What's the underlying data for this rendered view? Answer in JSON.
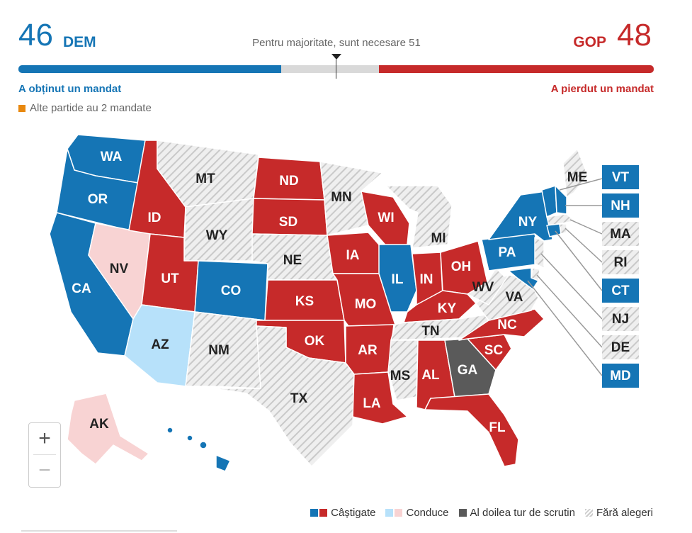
{
  "dem": {
    "seats": "46",
    "label": "DEM",
    "note": "A obținut un mandat"
  },
  "gop": {
    "seats": "48",
    "label": "GOP",
    "note": "A pierdut un mandat"
  },
  "majority_text": "Pentru majoritate, sunt necesare 51",
  "other_parties": "Alte partide au 2 mandate",
  "colors": {
    "dem": "#1575b5",
    "gop": "#c62a2a",
    "dem_lead": "#b7e1fa",
    "gop_lead": "#f8d3d3",
    "runoff": "#5a5a5a",
    "no_election": "#dedede",
    "other": "#e8880f"
  },
  "bar": {
    "total_seats": 100,
    "dem_seats": 46,
    "gop_seats": 48,
    "majority": 51
  },
  "states": {
    "WA": {
      "status": "dem"
    },
    "OR": {
      "status": "dem"
    },
    "CA": {
      "status": "dem"
    },
    "NV": {
      "status": "gop_lead"
    },
    "ID": {
      "status": "gop"
    },
    "MT": {
      "status": "none"
    },
    "WY": {
      "status": "none"
    },
    "UT": {
      "status": "gop"
    },
    "AZ": {
      "status": "dem_lead"
    },
    "CO": {
      "status": "dem"
    },
    "NM": {
      "status": "none"
    },
    "ND": {
      "status": "gop"
    },
    "SD": {
      "status": "gop"
    },
    "NE": {
      "status": "none"
    },
    "KS": {
      "status": "gop"
    },
    "OK": {
      "status": "gop"
    },
    "TX": {
      "status": "none"
    },
    "MN": {
      "status": "none"
    },
    "IA": {
      "status": "gop"
    },
    "MO": {
      "status": "gop"
    },
    "AR": {
      "status": "gop"
    },
    "LA": {
      "status": "gop"
    },
    "WI": {
      "status": "gop"
    },
    "IL": {
      "status": "dem"
    },
    "MI": {
      "status": "none"
    },
    "IN": {
      "status": "gop"
    },
    "OH": {
      "status": "gop"
    },
    "KY": {
      "status": "gop"
    },
    "TN": {
      "status": "none"
    },
    "MS": {
      "status": "none"
    },
    "AL": {
      "status": "gop"
    },
    "GA": {
      "status": "runoff"
    },
    "FL": {
      "status": "gop"
    },
    "SC": {
      "status": "gop"
    },
    "NC": {
      "status": "gop"
    },
    "VA": {
      "status": "none"
    },
    "WV": {
      "status": "none"
    },
    "PA": {
      "status": "dem"
    },
    "NY": {
      "status": "dem"
    },
    "ME": {
      "status": "none"
    },
    "AK": {
      "status": "gop_lead"
    },
    "HI": {
      "status": "dem"
    },
    "VT": {
      "status": "dem"
    },
    "NH": {
      "status": "dem"
    },
    "MA": {
      "status": "none"
    },
    "RI": {
      "status": "none"
    },
    "CT": {
      "status": "dem"
    },
    "NJ": {
      "status": "none"
    },
    "DE": {
      "status": "none"
    },
    "MD": {
      "status": "dem"
    }
  },
  "zoom": {
    "in": "+",
    "out": "−"
  },
  "legend": {
    "won": "Câștigate",
    "leading": "Conduce",
    "runoff": "Al doilea tur de scrutin",
    "no_election": "Fără alegeri"
  }
}
